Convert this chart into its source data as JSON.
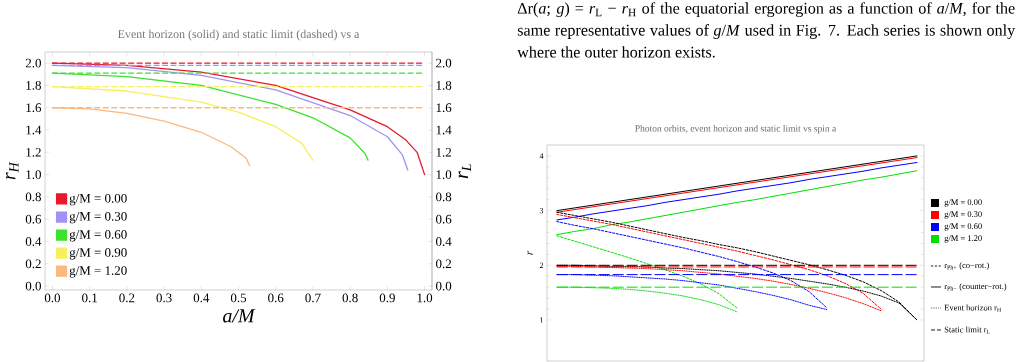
{
  "chart_data": [
    {
      "type": "line",
      "title": "Event horizon (solid) and static limit (dashed) vs a",
      "xlabel": "a/M",
      "ylabel": "r$_{H}$",
      "y2label": "r$_{L}$",
      "xlim": [
        -0.02,
        1.02
      ],
      "ylim": [
        -0.035,
        2.1
      ],
      "y2lim": [
        -0.035,
        2.1
      ],
      "xticks": [
        {
          "value": 0,
          "label": "0.0"
        },
        {
          "value": 0.1,
          "label": "0.1"
        },
        {
          "value": 0.2,
          "label": "0.2"
        },
        {
          "value": 0.3,
          "label": "0.3"
        },
        {
          "value": 0.4,
          "label": "0.4"
        },
        {
          "value": 0.5,
          "label": "0.5"
        },
        {
          "value": 0.6,
          "label": "0.6"
        },
        {
          "value": 0.7,
          "label": "0.7"
        },
        {
          "value": 0.8,
          "label": "0.8"
        },
        {
          "value": 0.9,
          "label": "0.9"
        },
        {
          "value": 1,
          "label": "1.0"
        }
      ],
      "yticks": [
        {
          "value": 0,
          "label": "0.0"
        },
        {
          "value": 0.2,
          "label": "0.2"
        },
        {
          "value": 0.4,
          "label": "0.4"
        },
        {
          "value": 0.6,
          "label": "0.6"
        },
        {
          "value": 0.8,
          "label": "0.8"
        },
        {
          "value": 1,
          "label": "1.0"
        },
        {
          "value": 1.2,
          "label": "1.2"
        },
        {
          "value": 1.4,
          "label": "1.4"
        },
        {
          "value": 1.6,
          "label": "1.6"
        },
        {
          "value": 1.8,
          "label": "1.8"
        },
        {
          "value": 2,
          "label": "2.0"
        }
      ],
      "y2ticks": [
        {
          "value": 0,
          "label": "0.0"
        },
        {
          "value": 0.2,
          "label": "0.2"
        },
        {
          "value": 0.4,
          "label": "0.4"
        },
        {
          "value": 0.6,
          "label": "0.6"
        },
        {
          "value": 0.8,
          "label": "0.8"
        },
        {
          "value": 1,
          "label": "1.0"
        },
        {
          "value": 1.2,
          "label": "1.2"
        },
        {
          "value": 1.4,
          "label": "1.4"
        },
        {
          "value": 1.6,
          "label": "1.6"
        },
        {
          "value": 1.8,
          "label": "1.8"
        },
        {
          "value": 2,
          "label": "2.0"
        }
      ],
      "legend": "bottom left",
      "series": [
        {
          "name": "g/M = 0.00",
          "color": "#e8192c",
          "line_style": "solid",
          "x": [
            0,
            0.2,
            0.4,
            0.6,
            0.8,
            0.9,
            0.95,
            0.98,
            1.0
          ],
          "values": [
            2.0,
            1.98,
            1.92,
            1.8,
            1.58,
            1.43,
            1.31,
            1.2,
            1.0
          ]
        },
        {
          "name": "g/M = 0.30",
          "color": "#9f93f5",
          "line_style": "solid",
          "x": [
            0,
            0.2,
            0.4,
            0.6,
            0.8,
            0.9,
            0.94,
            0.955
          ],
          "values": [
            1.98,
            1.96,
            1.89,
            1.76,
            1.53,
            1.34,
            1.18,
            1.04
          ]
        },
        {
          "name": "g/M = 0.60",
          "color": "#3be22b",
          "line_style": "solid",
          "x": [
            0,
            0.2,
            0.4,
            0.6,
            0.7,
            0.8,
            0.84,
            0.848
          ],
          "values": [
            1.91,
            1.88,
            1.8,
            1.63,
            1.51,
            1.33,
            1.19,
            1.13
          ]
        },
        {
          "name": "g/M = 0.90",
          "color": "#f7ef5b",
          "line_style": "solid",
          "x": [
            0,
            0.2,
            0.4,
            0.5,
            0.6,
            0.67,
            0.7
          ],
          "values": [
            1.79,
            1.75,
            1.65,
            1.56,
            1.43,
            1.28,
            1.13
          ]
        },
        {
          "name": "g/M = 1.20",
          "color": "#f9b97f",
          "line_style": "solid",
          "x": [
            0,
            0.1,
            0.2,
            0.3,
            0.4,
            0.48,
            0.52,
            0.53
          ],
          "values": [
            1.6,
            1.59,
            1.55,
            1.48,
            1.38,
            1.25,
            1.15,
            1.08
          ]
        },
        {
          "color": "#e8192c",
          "line_style": "dashed",
          "axis": "y2",
          "x": [
            0,
            1
          ],
          "values": [
            2.0,
            2.0
          ]
        },
        {
          "color": "#9f93f5",
          "line_style": "dashed",
          "axis": "y2",
          "x": [
            0,
            1
          ],
          "values": [
            1.98,
            1.98
          ]
        },
        {
          "color": "#3be22b",
          "line_style": "dashed",
          "axis": "y2",
          "x": [
            0,
            1
          ],
          "values": [
            1.91,
            1.91
          ]
        },
        {
          "color": "#f7ef5b",
          "line_style": "dashed",
          "axis": "y2",
          "x": [
            0,
            1
          ],
          "values": [
            1.79,
            1.79
          ]
        },
        {
          "color": "#f9b97f",
          "line_style": "dashed",
          "axis": "y2",
          "x": [
            0,
            1
          ],
          "values": [
            1.6,
            1.6
          ]
        }
      ]
    },
    {
      "type": "line",
      "title": "Photon orbits, event horizon and static limit vs spin a",
      "ylabel": "r",
      "categories": [
        null,
        null,
        null,
        null,
        null,
        null,
        null,
        null,
        null,
        null,
        null,
        null,
        null,
        null,
        null,
        null,
        null,
        null,
        null,
        null,
        null
      ],
      "ylim": [
        0.25,
        4.2
      ],
      "yticks": [
        1,
        2,
        3,
        4
      ],
      "series": [
        {
          "color": "#000000",
          "line_style": "solid",
          "values": [
            3.0,
            3.05,
            3.1,
            3.15,
            3.2,
            3.25,
            3.3,
            3.35,
            3.4,
            3.45,
            3.5,
            3.55,
            3.6,
            3.65,
            3.7,
            3.75,
            3.8,
            3.85,
            3.9,
            3.95,
            4.0
          ]
        },
        {
          "color": "#ff0000",
          "line_style": "solid",
          "values": [
            2.97,
            3.02,
            3.07,
            3.12,
            3.17,
            3.22,
            3.27,
            3.32,
            3.37,
            3.42,
            3.47,
            3.52,
            3.57,
            3.62,
            3.67,
            3.72,
            3.77,
            3.82,
            3.87,
            3.92,
            3.97
          ]
        },
        {
          "color": "#0000ff",
          "line_style": "solid",
          "values": [
            2.83,
            2.88,
            2.94,
            2.99,
            3.04,
            3.09,
            3.15,
            3.2,
            3.25,
            3.3,
            3.36,
            3.41,
            3.46,
            3.51,
            3.57,
            3.62,
            3.67,
            3.72,
            3.78,
            3.83,
            3.88
          ]
        },
        {
          "color": "#00e000",
          "line_style": "solid",
          "values": [
            2.56,
            2.62,
            2.67,
            2.74,
            2.79,
            2.85,
            2.91,
            2.97,
            3.03,
            3.09,
            3.15,
            3.2,
            3.26,
            3.32,
            3.38,
            3.44,
            3.5,
            3.56,
            3.61,
            3.67,
            3.73
          ]
        },
        {
          "color": "#000000",
          "line_style": "dashed",
          "values": [
            2.97,
            2.91,
            2.85,
            2.79,
            2.72,
            2.65,
            2.58,
            2.51,
            2.45,
            2.38,
            2.32,
            2.25,
            2.17,
            2.09,
            2.01,
            1.92,
            1.82,
            1.7,
            1.54,
            1.33,
            1.0
          ]
        },
        {
          "color": "#ff0000",
          "line_style": "dashed",
          "values": [
            2.93,
            2.87,
            2.81,
            2.75,
            2.68,
            2.61,
            2.54,
            2.47,
            2.4,
            2.33,
            2.26,
            2.18,
            2.1,
            2.01,
            1.92,
            1.81,
            1.67,
            1.49,
            1.2,
            null,
            null
          ]
        },
        {
          "color": "#0000ff",
          "line_style": "dashed",
          "values": [
            2.8,
            2.73,
            2.67,
            2.6,
            2.53,
            2.46,
            2.39,
            2.32,
            2.24,
            2.16,
            2.07,
            1.97,
            1.86,
            1.72,
            1.52,
            1.22,
            null,
            null,
            null,
            null,
            null
          ]
        },
        {
          "color": "#00e000",
          "line_style": "dashed",
          "values": [
            2.54,
            2.44,
            2.34,
            2.24,
            2.14,
            2.03,
            1.92,
            1.8,
            1.66,
            1.48,
            1.22,
            null,
            null,
            null,
            null,
            null,
            null,
            null,
            null,
            null,
            null
          ]
        },
        {
          "color": "#000000",
          "line_style": "dotted",
          "values": [
            2.0,
            2.0,
            1.99,
            1.98,
            1.98,
            1.97,
            1.95,
            1.94,
            1.92,
            1.9,
            1.87,
            1.84,
            1.8,
            1.76,
            1.71,
            1.66,
            1.6,
            1.53,
            1.44,
            1.31,
            1.0
          ]
        },
        {
          "color": "#ff0000",
          "line_style": "dotted",
          "values": [
            1.98,
            1.98,
            1.97,
            1.96,
            1.95,
            1.94,
            1.92,
            1.9,
            1.87,
            1.84,
            1.8,
            1.76,
            1.71,
            1.65,
            1.58,
            1.5,
            1.41,
            1.3,
            1.17,
            null,
            null
          ]
        },
        {
          "color": "#0000ff",
          "line_style": "dotted",
          "values": [
            1.83,
            1.83,
            1.82,
            1.81,
            1.79,
            1.77,
            1.75,
            1.72,
            1.68,
            1.64,
            1.58,
            1.52,
            1.45,
            1.37,
            1.27,
            1.19,
            null,
            null,
            null,
            null,
            null
          ]
        },
        {
          "color": "#00e000",
          "line_style": "dotted",
          "values": [
            1.6,
            1.6,
            1.59,
            1.58,
            1.56,
            1.53,
            1.49,
            1.44,
            1.37,
            1.28,
            1.15,
            null,
            null,
            null,
            null,
            null,
            null,
            null,
            null,
            null,
            null
          ]
        }
      ],
      "ref_lines": [
        {
          "axis": "y",
          "value": 2.0,
          "color": "#000000",
          "line_style": "dashed"
        },
        {
          "axis": "y",
          "value": 1.97,
          "color": "#ff0000",
          "line_style": "dashed"
        },
        {
          "axis": "y",
          "value": 1.83,
          "color": "#0000ff",
          "line_style": "dashed"
        },
        {
          "axis": "y",
          "value": 1.6,
          "color": "#00e000",
          "line_style": "dashed"
        }
      ],
      "annotations": [
        "g/M = 0.00",
        "g/M = 0.30",
        "g/M = 0.60",
        "g/M = 1.20",
        "r$_{Ph+}$ (co−rot.)",
        "r$_{Ph−}$ (counter−rot.)",
        "Event horizon r$_{H}$",
        "Static limit r$_{L}$"
      ]
    },
    {
      "type": "other",
      "annotations": [
        "Δr(*a*; *g*) = *r*$_{L}$ − *r*$_{H}$ of the equatorial ergoregion as a function of *a*/*M*, for the same representative values of *g*/*M* used in Fig. 7. Each series is shown only where the outer horizon exists."
      ]
    }
  ]
}
